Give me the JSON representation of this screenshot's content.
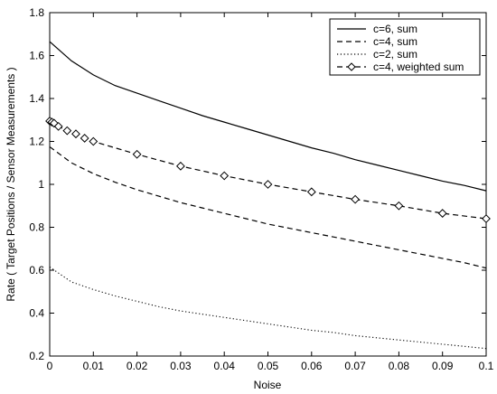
{
  "chart_data": {
    "type": "line",
    "title": "",
    "xlabel": "Noise",
    "ylabel": "Rate ( Target Positions / Sensor Measurements )",
    "xlim": [
      0,
      0.1
    ],
    "ylim": [
      0.2,
      1.8
    ],
    "xticks": [
      0,
      0.01,
      0.02,
      0.03,
      0.04,
      0.05,
      0.06,
      0.07,
      0.08,
      0.09,
      0.1
    ],
    "xtick_labels": [
      "0",
      "0.01",
      "0.02",
      "0.03",
      "0.04",
      "0.05",
      "0.06",
      "0.07",
      "0.08",
      "0.09",
      "0.1"
    ],
    "yticks": [
      0.2,
      0.4,
      0.6,
      0.8,
      1.0,
      1.2,
      1.4,
      1.6,
      1.8
    ],
    "ytick_labels": [
      "0.2",
      "0.4",
      "0.6",
      "0.8",
      "1",
      "1.2",
      "1.4",
      "1.6",
      "1.8"
    ],
    "grid": false,
    "legend_position": "top-right",
    "series": [
      {
        "name": "c=6, sum",
        "style": "solid",
        "marker": "none",
        "color": "#000000",
        "x": [
          0,
          0.005,
          0.01,
          0.015,
          0.02,
          0.025,
          0.03,
          0.035,
          0.04,
          0.045,
          0.05,
          0.055,
          0.06,
          0.065,
          0.07,
          0.075,
          0.08,
          0.085,
          0.09,
          0.095,
          0.1
        ],
        "y": [
          1.665,
          1.575,
          1.51,
          1.46,
          1.425,
          1.39,
          1.355,
          1.32,
          1.29,
          1.26,
          1.23,
          1.2,
          1.17,
          1.145,
          1.115,
          1.09,
          1.065,
          1.04,
          1.015,
          0.995,
          0.97
        ]
      },
      {
        "name": "c=4, sum",
        "style": "dashed",
        "marker": "none",
        "color": "#000000",
        "x": [
          0,
          0.005,
          0.01,
          0.015,
          0.02,
          0.025,
          0.03,
          0.035,
          0.04,
          0.045,
          0.05,
          0.055,
          0.06,
          0.065,
          0.07,
          0.075,
          0.08,
          0.085,
          0.09,
          0.095,
          0.1
        ],
        "y": [
          1.175,
          1.1,
          1.05,
          1.01,
          0.975,
          0.945,
          0.915,
          0.89,
          0.865,
          0.84,
          0.815,
          0.795,
          0.775,
          0.755,
          0.735,
          0.715,
          0.695,
          0.675,
          0.655,
          0.635,
          0.61
        ]
      },
      {
        "name": "c=2, sum",
        "style": "dotted",
        "marker": "none",
        "color": "#000000",
        "x": [
          0,
          0.005,
          0.01,
          0.015,
          0.02,
          0.025,
          0.03,
          0.035,
          0.04,
          0.045,
          0.05,
          0.055,
          0.06,
          0.065,
          0.07,
          0.075,
          0.08,
          0.085,
          0.09,
          0.095,
          0.1
        ],
        "y": [
          0.615,
          0.545,
          0.51,
          0.48,
          0.455,
          0.43,
          0.41,
          0.395,
          0.38,
          0.365,
          0.35,
          0.335,
          0.32,
          0.31,
          0.295,
          0.285,
          0.275,
          0.265,
          0.255,
          0.245,
          0.235
        ]
      },
      {
        "name": "c=4, weighted sum",
        "style": "dashed",
        "marker": "diamond",
        "color": "#000000",
        "x": [
          0,
          0.0005,
          0.001,
          0.002,
          0.004,
          0.006,
          0.008,
          0.01,
          0.02,
          0.03,
          0.04,
          0.05,
          0.06,
          0.07,
          0.08,
          0.09,
          0.1
        ],
        "y": [
          1.295,
          1.29,
          1.285,
          1.27,
          1.25,
          1.235,
          1.215,
          1.2,
          1.14,
          1.085,
          1.04,
          1.0,
          0.965,
          0.93,
          0.9,
          0.865,
          0.84
        ]
      }
    ]
  }
}
